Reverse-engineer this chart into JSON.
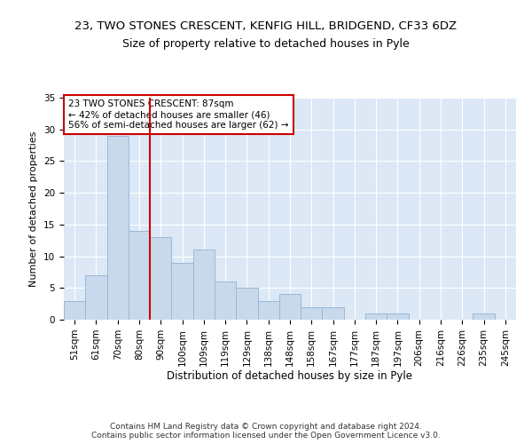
{
  "title1": "23, TWO STONES CRESCENT, KENFIG HILL, BRIDGEND, CF33 6DZ",
  "title2": "Size of property relative to detached houses in Pyle",
  "xlabel": "Distribution of detached houses by size in Pyle",
  "ylabel": "Number of detached properties",
  "categories": [
    "51sqm",
    "61sqm",
    "70sqm",
    "80sqm",
    "90sqm",
    "100sqm",
    "109sqm",
    "119sqm",
    "129sqm",
    "138sqm",
    "148sqm",
    "158sqm",
    "167sqm",
    "177sqm",
    "187sqm",
    "197sqm",
    "206sqm",
    "216sqm",
    "226sqm",
    "235sqm",
    "245sqm"
  ],
  "values": [
    3,
    7,
    29,
    14,
    13,
    9,
    11,
    6,
    5,
    3,
    4,
    2,
    2,
    0,
    1,
    1,
    0,
    0,
    0,
    1,
    0
  ],
  "bar_color": "#c8d9ec",
  "bar_edge_color": "#9ab8d8",
  "vline_x": 3.5,
  "vline_color": "#cc0000",
  "annotation_text": "23 TWO STONES CRESCENT: 87sqm\n← 42% of detached houses are smaller (46)\n56% of semi-detached houses are larger (62) →",
  "annotation_box_color": "white",
  "annotation_box_edge": "#cc0000",
  "ylim": [
    0,
    35
  ],
  "yticks": [
    0,
    5,
    10,
    15,
    20,
    25,
    30,
    35
  ],
  "footer": "Contains HM Land Registry data © Crown copyright and database right 2024.\nContains public sector information licensed under the Open Government Licence v3.0.",
  "plot_background": "#dce8f5",
  "grid_color": "white",
  "title1_fontsize": 9.5,
  "title2_fontsize": 9,
  "xlabel_fontsize": 8.5,
  "ylabel_fontsize": 8,
  "tick_fontsize": 7.5,
  "footer_fontsize": 6.5,
  "annotation_fontsize": 7.5
}
